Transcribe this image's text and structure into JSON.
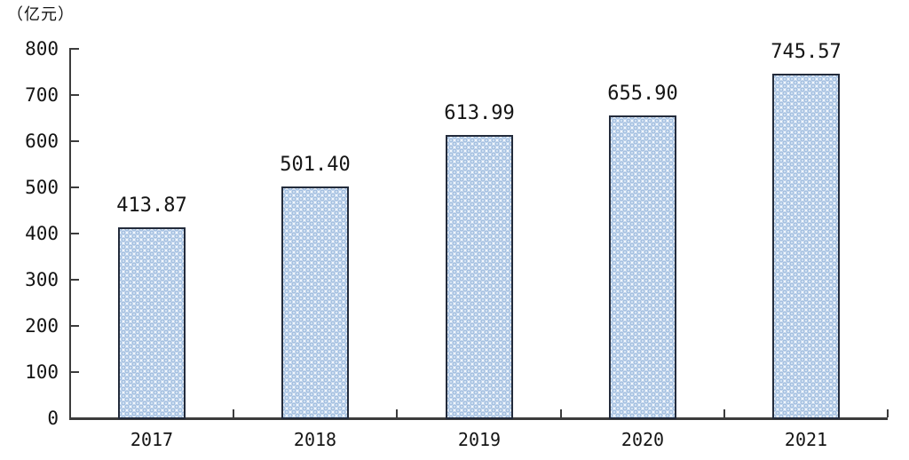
{
  "chart_data": {
    "type": "bar",
    "title": "",
    "unit_label": "（亿元）",
    "categories": [
      "2017",
      "2018",
      "2019",
      "2020",
      "2021"
    ],
    "values": [
      413.87,
      501.4,
      613.99,
      655.9,
      745.57
    ],
    "value_labels": [
      "413.87",
      "501.40",
      "613.99",
      "655.90",
      "745.57"
    ],
    "xlabel": "",
    "ylabel": "亿元",
    "ylim": [
      0,
      800
    ],
    "y_ticks": [
      0,
      100,
      200,
      300,
      400,
      500,
      600,
      700,
      800
    ],
    "grid": false,
    "legend_position": "none",
    "colors": {
      "bar_dot": "#a6c1e1",
      "bar_dot_highlight": "#dce9f6",
      "bar_background": "#f3f8fd",
      "bar_border": "#232b3b",
      "axis": "#3c3c3c",
      "text": "#151515"
    }
  }
}
